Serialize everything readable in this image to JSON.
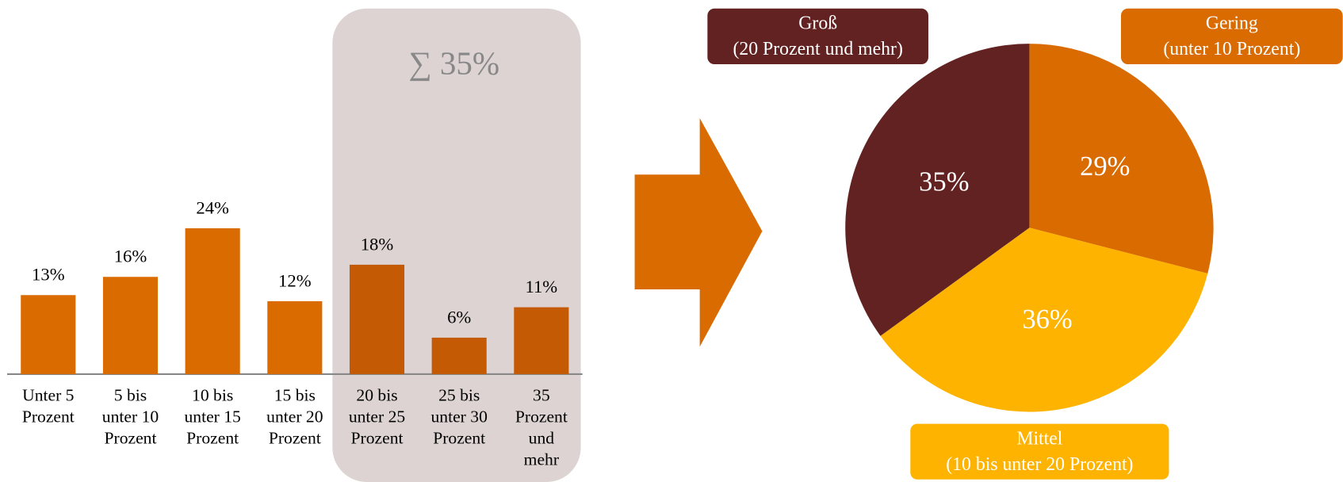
{
  "chart_data": [
    {
      "type": "bar",
      "categories": [
        "Unter 5\nProzent",
        "5 bis\nunter 10\nProzent",
        "10 bis\nunter 15\nProzent",
        "15 bis\nunter 20\nProzent",
        "20 bis\nunter 25\nProzent",
        "25 bis\nunter 30\nProzent",
        "35\nProzent\nund\nmehr"
      ],
      "values": [
        13,
        16,
        24,
        12,
        18,
        6,
        11
      ],
      "value_labels": [
        "13%",
        "16%",
        "24%",
        "12%",
        "18%",
        "6%",
        "11%"
      ],
      "colors": [
        "#d96b00",
        "#d96b00",
        "#d96b00",
        "#d96b00",
        "#c55a05",
        "#c55a05",
        "#c55a05"
      ],
      "annotation": "∑ 35%"
    },
    {
      "type": "pie",
      "categories": [
        "Gering\n(unter 10 Prozent)",
        "Mittel\n(10 bis unter 20 Prozent)",
        "Groß\n(20 Prozent und mehr)"
      ],
      "values": [
        29,
        36,
        35
      ],
      "value_labels": [
        "29%",
        "36%",
        "35%"
      ],
      "colors": [
        "#d96b00",
        "#fdb300",
        "#622222"
      ]
    }
  ]
}
